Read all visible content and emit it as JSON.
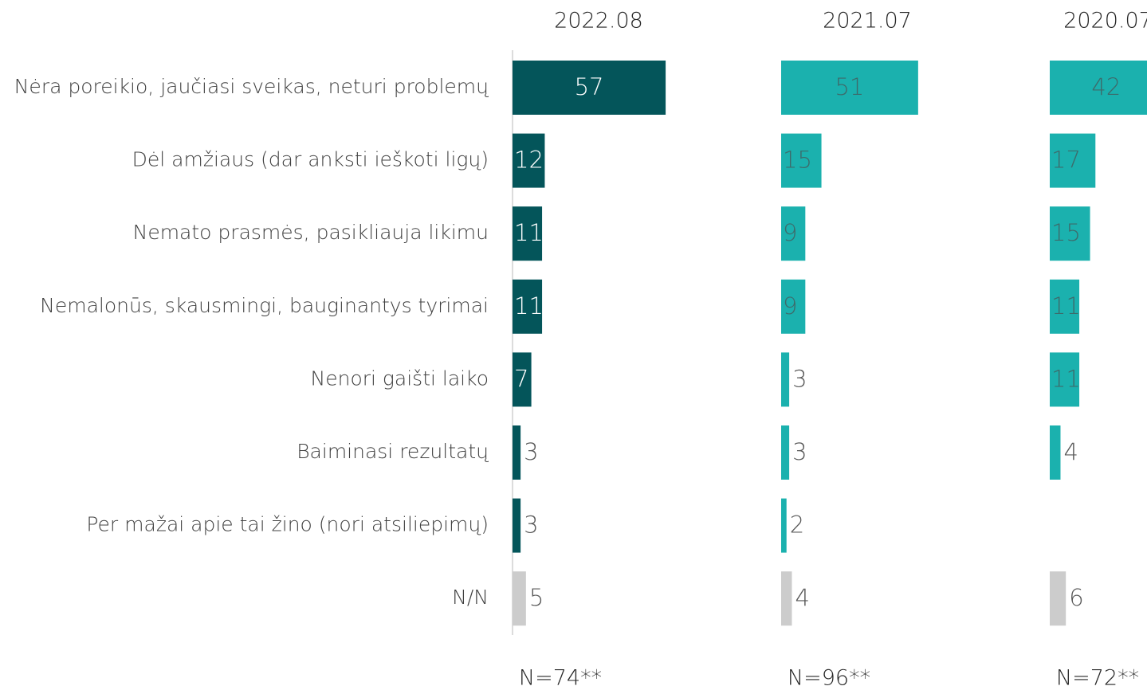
{
  "chart_data": {
    "type": "bar",
    "orientation": "horizontal",
    "categories": [
      "Nėra poreikio, jaučiasi sveikas, neturi problemų",
      "Dėl amžiaus (dar anksti ieškoti ligų)",
      "Nemato prasmės, pasikliauja likimu",
      "Nemalonūs, skausmingi, bauginantys tyrimai",
      "Nenori gaišti laiko",
      "Baiminasi rezultatų",
      "Per mažai apie tai žino (nori atsiliepimų)",
      "N/N"
    ],
    "series": [
      {
        "name": "2022.08",
        "note": "N=74**",
        "values": [
          57,
          12,
          11,
          11,
          7,
          3,
          3,
          5
        ],
        "colors": [
          "#04555a",
          "#04555a",
          "#04555a",
          "#04555a",
          "#04555a",
          "#04555a",
          "#04555a",
          "#cccccc"
        ],
        "inside_label_color": "#ffffff"
      },
      {
        "name": "2021.07",
        "note": "N=96**",
        "values": [
          51,
          15,
          9,
          9,
          3,
          3,
          2,
          4
        ],
        "colors": [
          "#1bb1ae",
          "#1bb1ae",
          "#1bb1ae",
          "#1bb1ae",
          "#1bb1ae",
          "#1bb1ae",
          "#1bb1ae",
          "#cccccc"
        ],
        "inside_label_color": "#3d6b6b"
      },
      {
        "name": "2020.07",
        "note": "N=72**",
        "values": [
          42,
          17,
          15,
          11,
          11,
          4,
          null,
          6
        ],
        "colors": [
          "#1bb1ae",
          "#1bb1ae",
          "#1bb1ae",
          "#1bb1ae",
          "#1bb1ae",
          "#1bb1ae",
          "#1bb1ae",
          "#cccccc"
        ],
        "inside_label_color": "#3d6b6b"
      }
    ]
  }
}
